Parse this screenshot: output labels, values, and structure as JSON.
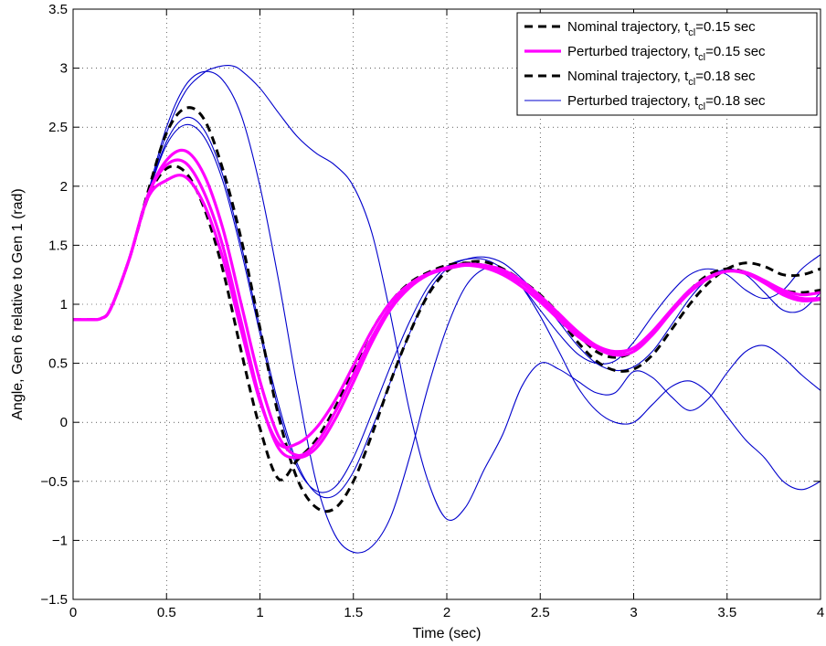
{
  "chart_data": {
    "type": "line",
    "xlabel": "Time (sec)",
    "ylabel": "Angle, Gen 6 relative to Gen 1 (rad)",
    "xlim": [
      0,
      4
    ],
    "ylim": [
      -1.5,
      3.5
    ],
    "xticks": [
      0,
      0.5,
      1,
      1.5,
      2,
      2.5,
      3,
      3.5,
      4
    ],
    "yticks": [
      -1.5,
      -1,
      -0.5,
      0,
      0.5,
      1,
      1.5,
      2,
      2.5,
      3,
      3.5
    ],
    "xtick_labels": [
      "0",
      "0.5",
      "1",
      "1.5",
      "2",
      "2.5",
      "3",
      "3.5",
      "4"
    ],
    "ytick_labels": [
      "−1.5",
      "−1",
      "−0.5",
      "0",
      "0.5",
      "1",
      "1.5",
      "2",
      "2.5",
      "3",
      "3.5"
    ],
    "grid": true,
    "legend_position": "top-right",
    "legend": [
      {
        "label": "Nominal trajectory, t",
        "sub": "cl",
        "suffix": "=0.15 sec",
        "color": "#000000",
        "style": "dashed",
        "width": 3
      },
      {
        "label": "Perturbed trajectory, t",
        "sub": "cl",
        "suffix": "=0.15 sec",
        "color": "#ff00ff",
        "style": "solid",
        "width": 3.2
      },
      {
        "label": "Nominal trajectory, t",
        "sub": "cl",
        "suffix": "=0.18 sec",
        "color": "#000000",
        "style": "dashed",
        "width": 3
      },
      {
        "label": "Perturbed trajectory, t",
        "sub": "cl",
        "suffix": "=0.18 sec",
        "color": "#0000cc",
        "style": "solid",
        "width": 1.1
      }
    ],
    "series": [
      {
        "group": "perturbed-0.18",
        "color": "#0000cc",
        "style": "solid",
        "width": 1.1,
        "x": [
          0,
          0.1,
          0.15,
          0.2,
          0.3,
          0.4,
          0.5,
          0.6,
          0.7,
          0.75,
          0.8,
          0.85,
          0.9,
          1.0,
          1.1,
          1.2,
          1.3,
          1.4,
          1.5,
          1.6,
          1.7,
          1.8,
          1.9,
          2.0,
          2.1,
          2.2,
          2.3,
          2.4,
          2.5,
          2.6,
          2.7,
          2.8,
          2.9,
          3.0,
          3.1,
          3.2,
          3.3,
          3.4,
          3.5,
          3.6,
          3.7,
          3.8,
          3.9,
          4.0
        ],
        "y": [
          0.87,
          0.87,
          0.88,
          0.96,
          1.38,
          1.92,
          2.45,
          2.8,
          2.96,
          3.0,
          3.02,
          3.02,
          2.98,
          2.83,
          2.62,
          2.42,
          2.28,
          2.18,
          2.0,
          1.6,
          0.9,
          0.1,
          -0.5,
          -0.82,
          -0.72,
          -0.4,
          -0.1,
          0.3,
          0.5,
          0.45,
          0.35,
          0.25,
          0.25,
          0.43,
          0.38,
          0.22,
          0.1,
          0.2,
          0.42,
          0.6,
          0.65,
          0.55,
          0.4,
          0.27
        ]
      },
      {
        "group": "perturbed-0.18",
        "color": "#0000cc",
        "style": "solid",
        "width": 1.1,
        "x": [
          0,
          0.1,
          0.15,
          0.2,
          0.3,
          0.4,
          0.5,
          0.6,
          0.7,
          0.8,
          0.9,
          1.0,
          1.1,
          1.2,
          1.3,
          1.4,
          1.5,
          1.6,
          1.7,
          1.8,
          1.9,
          2.0,
          2.1,
          2.2,
          2.3,
          2.4,
          2.5,
          2.6,
          2.7,
          2.8,
          2.9,
          3.0,
          3.1,
          3.2,
          3.3,
          3.4,
          3.5,
          3.6,
          3.7,
          3.8,
          3.9,
          4.0
        ],
        "y": [
          0.87,
          0.87,
          0.88,
          0.96,
          1.38,
          1.94,
          2.5,
          2.85,
          2.97,
          2.9,
          2.6,
          2.0,
          1.2,
          0.3,
          -0.5,
          -0.95,
          -1.1,
          -1.05,
          -0.8,
          -0.3,
          0.3,
          0.8,
          1.15,
          1.3,
          1.3,
          1.15,
          0.9,
          0.6,
          0.3,
          0.1,
          0.0,
          0.0,
          0.15,
          0.3,
          0.35,
          0.25,
          0.05,
          -0.15,
          -0.3,
          -0.5,
          -0.57,
          -0.5
        ]
      },
      {
        "group": "perturbed-0.18",
        "color": "#0000cc",
        "style": "solid",
        "width": 1.1,
        "x": [
          0,
          0.1,
          0.15,
          0.2,
          0.3,
          0.4,
          0.5,
          0.6,
          0.7,
          0.8,
          0.9,
          1.0,
          1.1,
          1.2,
          1.3,
          1.4,
          1.5,
          1.6,
          1.7,
          1.8,
          1.9,
          2.0,
          2.1,
          2.2,
          2.3,
          2.4,
          2.5,
          2.6,
          2.7,
          2.8,
          2.9,
          3.0,
          3.1,
          3.2,
          3.3,
          3.4,
          3.5,
          3.6,
          3.7,
          3.8,
          3.9,
          4.0
        ],
        "y": [
          0.87,
          0.87,
          0.88,
          0.96,
          1.38,
          1.92,
          2.38,
          2.58,
          2.48,
          2.1,
          1.5,
          0.8,
          0.15,
          -0.35,
          -0.6,
          -0.62,
          -0.42,
          -0.05,
          0.35,
          0.75,
          1.1,
          1.3,
          1.38,
          1.4,
          1.35,
          1.22,
          1.05,
          0.85,
          0.65,
          0.5,
          0.44,
          0.47,
          0.6,
          0.82,
          1.05,
          1.22,
          1.3,
          1.25,
          1.1,
          0.95,
          0.95,
          1.1
        ]
      },
      {
        "group": "perturbed-0.18",
        "color": "#0000cc",
        "style": "solid",
        "width": 1.1,
        "x": [
          0,
          0.1,
          0.15,
          0.2,
          0.3,
          0.4,
          0.5,
          0.6,
          0.7,
          0.8,
          0.9,
          1.0,
          1.1,
          1.2,
          1.3,
          1.4,
          1.5,
          1.6,
          1.7,
          1.8,
          1.9,
          2.0,
          2.1,
          2.2,
          2.3,
          2.4,
          2.5,
          2.6,
          2.7,
          2.8,
          2.9,
          3.0,
          3.1,
          3.2,
          3.3,
          3.4,
          3.5,
          3.6,
          3.7,
          3.8,
          3.9,
          4.0
        ],
        "y": [
          0.87,
          0.87,
          0.88,
          0.96,
          1.38,
          1.92,
          2.35,
          2.52,
          2.42,
          2.05,
          1.45,
          0.75,
          0.1,
          -0.38,
          -0.58,
          -0.55,
          -0.3,
          0.08,
          0.48,
          0.85,
          1.15,
          1.32,
          1.38,
          1.38,
          1.3,
          1.15,
          0.95,
          0.75,
          0.58,
          0.5,
          0.52,
          0.68,
          0.9,
          1.1,
          1.25,
          1.3,
          1.25,
          1.12,
          1.05,
          1.12,
          1.3,
          1.42
        ]
      },
      {
        "group": "nominal",
        "color": "#000000",
        "style": "dashed",
        "width": 3,
        "x": [
          0,
          0.1,
          0.15,
          0.2,
          0.3,
          0.4,
          0.5,
          0.6,
          0.7,
          0.8,
          0.9,
          1.0,
          1.1,
          1.2,
          1.3,
          1.4,
          1.5,
          1.6,
          1.7,
          1.8,
          1.9,
          2.0,
          2.1,
          2.2,
          2.3,
          2.4,
          2.5,
          2.6,
          2.7,
          2.8,
          2.9,
          3.0,
          3.1,
          3.2,
          3.3,
          3.4,
          3.5,
          3.6,
          3.7,
          3.8,
          3.9,
          4.0
        ],
        "y": [
          0.87,
          0.87,
          0.88,
          0.96,
          1.38,
          1.95,
          2.45,
          2.66,
          2.57,
          2.15,
          1.55,
          0.8,
          0.05,
          -0.48,
          -0.72,
          -0.73,
          -0.5,
          -0.1,
          0.35,
          0.75,
          1.08,
          1.28,
          1.35,
          1.36,
          1.3,
          1.2,
          1.05,
          0.88,
          0.68,
          0.52,
          0.44,
          0.45,
          0.57,
          0.78,
          1.0,
          1.18,
          1.3,
          1.35,
          1.32,
          1.25,
          1.25,
          1.3
        ]
      },
      {
        "group": "nominal",
        "color": "#000000",
        "style": "dashed",
        "width": 3,
        "x": [
          0,
          0.1,
          0.15,
          0.2,
          0.3,
          0.4,
          0.5,
          0.6,
          0.7,
          0.8,
          0.9,
          1.0,
          1.1,
          1.2,
          1.3,
          1.4,
          1.5,
          1.6,
          1.7,
          1.8,
          1.9,
          2.0,
          2.1,
          2.2,
          2.3,
          2.4,
          2.5,
          2.6,
          2.7,
          2.8,
          2.9,
          3.0,
          3.1,
          3.2,
          3.3,
          3.4,
          3.5,
          3.6,
          3.7,
          3.8,
          3.9,
          4.0
        ],
        "y": [
          0.87,
          0.87,
          0.88,
          0.96,
          1.38,
          1.9,
          2.15,
          2.12,
          1.82,
          1.3,
          0.6,
          -0.05,
          -0.48,
          -0.32,
          -0.15,
          0.12,
          0.45,
          0.78,
          1.02,
          1.18,
          1.27,
          1.33,
          1.35,
          1.33,
          1.28,
          1.2,
          1.08,
          0.92,
          0.75,
          0.6,
          0.55,
          0.6,
          0.75,
          0.95,
          1.12,
          1.25,
          1.3,
          1.27,
          1.2,
          1.12,
          1.1,
          1.12
        ]
      },
      {
        "group": "perturbed-0.15",
        "color": "#ff00ff",
        "style": "solid",
        "width": 3.2,
        "x": [
          0,
          0.1,
          0.15,
          0.2,
          0.3,
          0.4,
          0.5,
          0.6,
          0.7,
          0.8,
          0.9,
          1.0,
          1.1,
          1.2,
          1.3,
          1.4,
          1.5,
          1.6,
          1.7,
          1.8,
          1.9,
          2.0,
          2.1,
          2.2,
          2.3,
          2.4,
          2.5,
          2.6,
          2.7,
          2.8,
          2.9,
          3.0,
          3.1,
          3.2,
          3.3,
          3.4,
          3.5,
          3.6,
          3.7,
          3.8,
          3.9,
          4.0
        ],
        "y": [
          0.87,
          0.87,
          0.88,
          0.96,
          1.38,
          1.92,
          2.22,
          2.3,
          2.1,
          1.65,
          1.0,
          0.35,
          -0.12,
          -0.28,
          -0.18,
          0.08,
          0.4,
          0.72,
          0.98,
          1.15,
          1.25,
          1.3,
          1.33,
          1.32,
          1.27,
          1.18,
          1.05,
          0.9,
          0.75,
          0.63,
          0.57,
          0.6,
          0.74,
          0.93,
          1.1,
          1.22,
          1.28,
          1.27,
          1.2,
          1.1,
          1.05,
          1.05
        ]
      },
      {
        "group": "perturbed-0.15",
        "color": "#ff00ff",
        "style": "solid",
        "width": 3.2,
        "x": [
          0,
          0.1,
          0.15,
          0.2,
          0.3,
          0.4,
          0.5,
          0.6,
          0.7,
          0.8,
          0.9,
          1.0,
          1.1,
          1.2,
          1.3,
          1.4,
          1.5,
          1.6,
          1.7,
          1.8,
          1.9,
          2.0,
          2.1,
          2.2,
          2.3,
          2.4,
          2.5,
          2.6,
          2.7,
          2.8,
          2.9,
          3.0,
          3.1,
          3.2,
          3.3,
          3.4,
          3.5,
          3.6,
          3.7,
          3.8,
          3.9,
          4.0
        ],
        "y": [
          0.87,
          0.87,
          0.88,
          0.96,
          1.38,
          1.9,
          2.05,
          2.08,
          1.85,
          1.4,
          0.78,
          0.18,
          -0.18,
          -0.18,
          -0.05,
          0.18,
          0.48,
          0.78,
          1.02,
          1.17,
          1.26,
          1.31,
          1.33,
          1.31,
          1.25,
          1.15,
          1.02,
          0.87,
          0.73,
          0.63,
          0.59,
          0.63,
          0.77,
          0.95,
          1.12,
          1.23,
          1.28,
          1.26,
          1.18,
          1.08,
          1.03,
          1.04
        ]
      },
      {
        "group": "perturbed-0.15",
        "color": "#ff00ff",
        "style": "solid",
        "width": 3.2,
        "x": [
          0,
          0.1,
          0.15,
          0.2,
          0.3,
          0.4,
          0.5,
          0.6,
          0.7,
          0.8,
          0.9,
          1.0,
          1.1,
          1.2,
          1.3,
          1.4,
          1.5,
          1.6,
          1.7,
          1.8,
          1.9,
          2.0,
          2.1,
          2.2,
          2.3,
          2.4,
          2.5,
          2.6,
          2.7,
          2.8,
          2.9,
          3.0,
          3.1,
          3.2,
          3.3,
          3.4,
          3.5,
          3.6,
          3.7,
          3.8,
          3.9,
          4.0
        ],
        "y": [
          0.87,
          0.87,
          0.88,
          0.96,
          1.38,
          1.92,
          2.18,
          2.2,
          1.95,
          1.5,
          0.85,
          0.2,
          -0.22,
          -0.3,
          -0.22,
          0.02,
          0.34,
          0.68,
          0.96,
          1.14,
          1.25,
          1.31,
          1.34,
          1.33,
          1.29,
          1.2,
          1.07,
          0.92,
          0.77,
          0.65,
          0.6,
          0.63,
          0.76,
          0.94,
          1.1,
          1.22,
          1.28,
          1.27,
          1.2,
          1.12,
          1.08,
          1.1
        ]
      }
    ]
  }
}
